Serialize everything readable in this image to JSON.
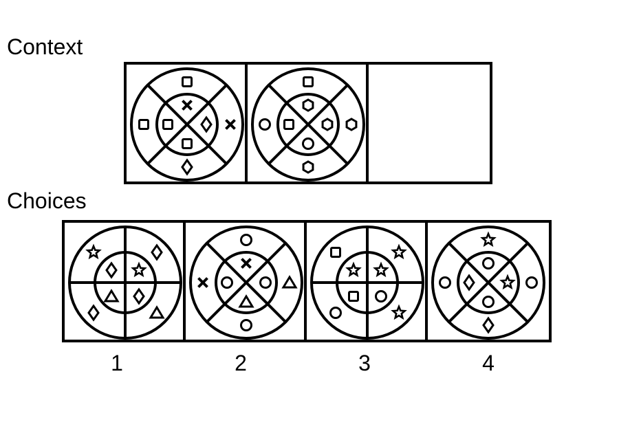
{
  "context": {
    "title": "Context",
    "panels": [
      {
        "divider": "x",
        "inner": {
          "top": "x",
          "right": "diamond",
          "bottom": "square",
          "left": "square"
        },
        "outer": {
          "top": "square",
          "right": "x",
          "bottom": "diamond",
          "left": "square"
        }
      },
      {
        "divider": "x",
        "inner": {
          "top": "hexagon",
          "right": "hexagon",
          "bottom": "circle",
          "left": "square"
        },
        "outer": {
          "top": "square",
          "right": "hexagon",
          "bottom": "hexagon",
          "left": "circle"
        }
      },
      {
        "blank": true
      }
    ]
  },
  "choices": {
    "title": "Choices",
    "labels": [
      "1",
      "2",
      "3",
      "4"
    ],
    "panels": [
      {
        "divider": "plus",
        "inner": {
          "tl": "diamond",
          "tr": "star",
          "bl": "triangle",
          "br": "diamond"
        },
        "outer": {
          "tl": "star",
          "tr": "diamond",
          "bl": "diamond",
          "br": "triangle"
        }
      },
      {
        "divider": "x",
        "inner": {
          "top": "x",
          "right": "circle",
          "bottom": "triangle",
          "left": "circle"
        },
        "outer": {
          "top": "circle",
          "right": "triangle",
          "bottom": "circle",
          "left": "x"
        }
      },
      {
        "divider": "plus",
        "inner": {
          "tl": "star",
          "tr": "star",
          "bl": "square",
          "br": "circle"
        },
        "outer": {
          "tl": "square",
          "tr": "star",
          "bl": "circle",
          "br": "star"
        }
      },
      {
        "divider": "x",
        "inner": {
          "top": "circle",
          "right": "star",
          "bottom": "circle",
          "left": "diamond"
        },
        "outer": {
          "top": "star",
          "right": "circle",
          "bottom": "diamond",
          "left": "circle"
        }
      }
    ]
  }
}
